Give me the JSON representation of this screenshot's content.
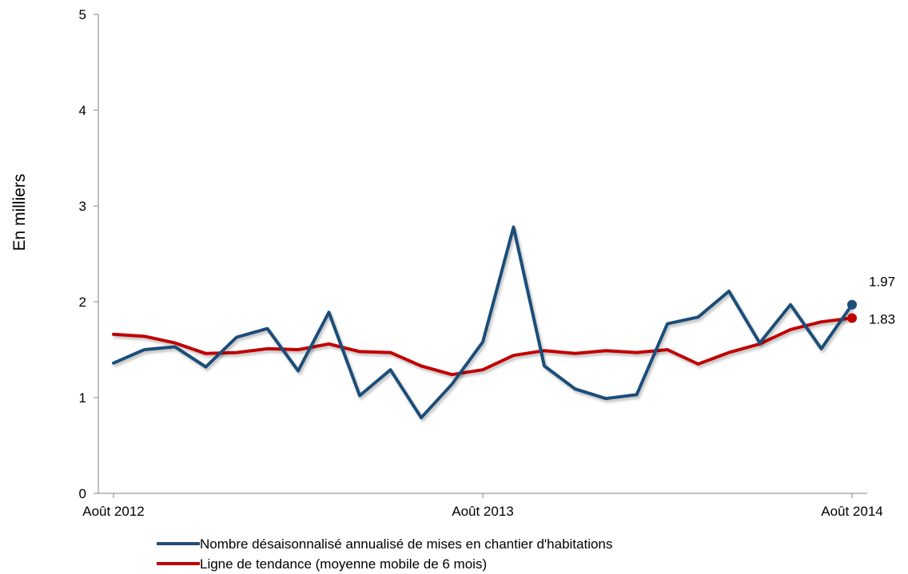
{
  "chart_data": {
    "type": "line",
    "ylabel": "En milliers",
    "ylim": [
      0,
      5
    ],
    "yticks": [
      "0",
      "1",
      "2",
      "3",
      "4",
      "5"
    ],
    "x_labels": [
      "Août 2012",
      "Août 2013",
      "Août 2014"
    ],
    "x": [
      "2012-08",
      "2012-09",
      "2012-10",
      "2012-11",
      "2012-12",
      "2013-01",
      "2013-02",
      "2013-03",
      "2013-04",
      "2013-05",
      "2013-06",
      "2013-07",
      "2013-08",
      "2013-09",
      "2013-10",
      "2013-11",
      "2013-12",
      "2014-01",
      "2014-02",
      "2014-03",
      "2014-04",
      "2014-05",
      "2014-06",
      "2014-07",
      "2014-08"
    ],
    "series": [
      {
        "name": "Nombre désaisonnalisé annualisé de mises en chantier d'habitations",
        "color": "#1f4e79",
        "values": [
          1.36,
          1.5,
          1.53,
          1.32,
          1.63,
          1.72,
          1.28,
          1.89,
          1.02,
          1.29,
          0.79,
          1.14,
          1.58,
          2.78,
          1.33,
          1.09,
          0.99,
          1.03,
          1.77,
          1.84,
          2.11,
          1.57,
          1.97,
          1.51,
          1.97
        ]
      },
      {
        "name": "Ligne de tendance (moyenne mobile de 6 mois)",
        "color": "#c00000",
        "values": [
          1.66,
          1.64,
          1.57,
          1.46,
          1.47,
          1.51,
          1.5,
          1.56,
          1.48,
          1.47,
          1.33,
          1.24,
          1.29,
          1.44,
          1.49,
          1.46,
          1.49,
          1.47,
          1.5,
          1.35,
          1.47,
          1.56,
          1.71,
          1.79,
          1.83
        ]
      }
    ],
    "end_labels": [
      "1.97",
      "1.83"
    ],
    "grid": false,
    "legend": "bottom"
  }
}
